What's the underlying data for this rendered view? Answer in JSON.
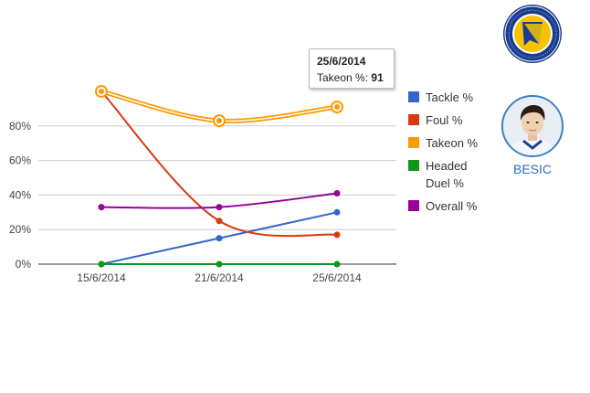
{
  "chart_data": {
    "type": "line",
    "categories": [
      "15/6/2014",
      "21/6/2014",
      "25/6/2014"
    ],
    "ylim": [
      0,
      100
    ],
    "yticks": [
      "0%",
      "20%",
      "40%",
      "60%",
      "80%"
    ],
    "ytick_values": [
      0,
      20,
      40,
      60,
      80
    ],
    "grid": true,
    "legend_position": "right",
    "series": [
      {
        "name": "Tackle %",
        "color": "#3366cc",
        "values": [
          0,
          15,
          30
        ]
      },
      {
        "name": "Foul %",
        "color": "#dc3912",
        "values": [
          100,
          25,
          17
        ]
      },
      {
        "name": "Takeon %",
        "color": "#ff9900",
        "values": [
          100,
          83,
          91
        ]
      },
      {
        "name": "Headed Duel %",
        "color": "#109618",
        "values": [
          0,
          0,
          0
        ]
      },
      {
        "name": "Overall %",
        "color": "#990099",
        "values": [
          33,
          33,
          41
        ]
      }
    ]
  },
  "tooltip": {
    "date": "25/6/2014",
    "label": "Takeon %:",
    "value": "91"
  },
  "player": {
    "name": "BESIC"
  }
}
